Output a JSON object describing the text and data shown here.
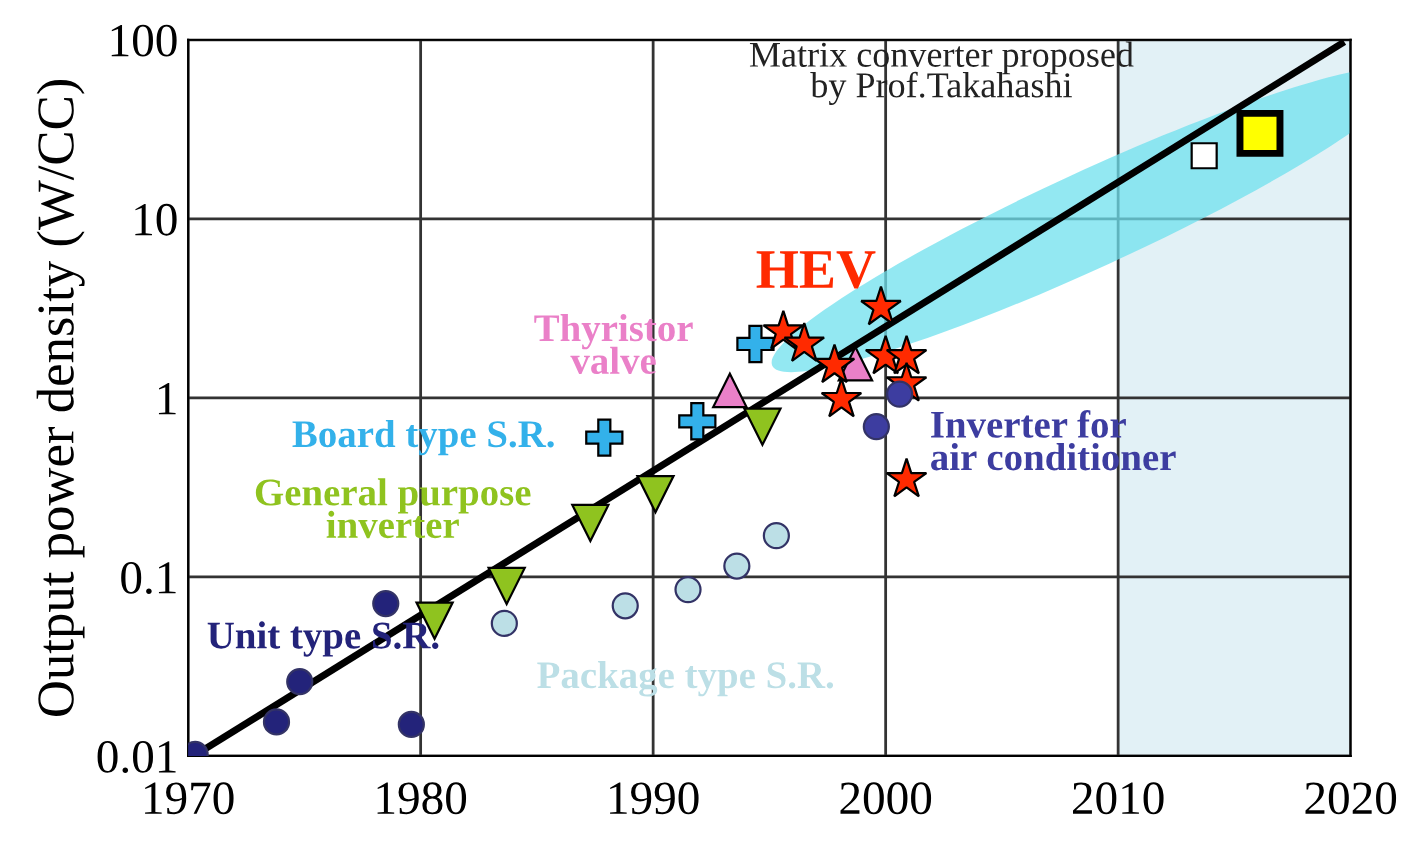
{
  "chart_data": {
    "type": "scatter",
    "ylabel": "Output power density (W/CC)",
    "xlim": [
      1970,
      2020
    ],
    "xticks": [
      1970,
      1980,
      1990,
      2000,
      2010,
      2020
    ],
    "ylim": [
      0.01,
      100
    ],
    "yticks": [
      0.01,
      0.1,
      1,
      10,
      100
    ],
    "log": "y",
    "grid": true,
    "legend": false,
    "bands": [
      {
        "axis": "x",
        "from": 2010,
        "to": 2020,
        "color": "#e2f1f6"
      }
    ],
    "series": [
      {
        "type": "line",
        "color": "#000000",
        "marker": "none",
        "x": [
          1970.5,
          2019.6
        ],
        "values": [
          0.0105,
          95
        ]
      },
      {
        "name": "Unit type S.R.",
        "color": "#23237a",
        "marker": "circle",
        "x": [
          1970.3,
          1973.8,
          1974.8,
          1978.5,
          1979.6
        ],
        "values": [
          0.0102,
          0.0155,
          0.026,
          0.071,
          0.015
        ]
      },
      {
        "name": "General purpose\ninverter",
        "color": "#8fc31f",
        "marker": "triangle_down",
        "x": [
          1980.6,
          1983.7,
          1987.3,
          1990.1,
          1994.7
        ],
        "values": [
          0.057,
          0.089,
          0.2,
          0.29,
          0.69
        ]
      },
      {
        "name": "Package type S.R.",
        "color": "#bcdfe6",
        "marker": "circle",
        "x": [
          1983.6,
          1988.8,
          1991.5,
          1993.6,
          1995.3
        ],
        "values": [
          0.055,
          0.069,
          0.085,
          0.115,
          0.17
        ]
      },
      {
        "name": "Board type S.R.",
        "color": "#33b1ea",
        "marker": "cross",
        "x": [
          1987.9,
          1991.9,
          1994.4
        ],
        "values": [
          0.6,
          0.74,
          2.0
        ]
      },
      {
        "name": "Thyristor\nvalve",
        "color": "#ea80c8",
        "marker": "triangle",
        "x": [
          1993.3,
          1998.7
        ],
        "values": [
          1.1,
          1.55
        ]
      },
      {
        "name": "HEV",
        "color": "#ff2a00",
        "marker": "star",
        "x": [
          1995.6,
          1996.5,
          1997.8,
          1999.8,
          2000.0,
          2000.9,
          2000.9,
          1998.1,
          2000.9
        ],
        "values": [
          2.34,
          2.0,
          1.52,
          3.2,
          1.7,
          1.7,
          1.2,
          0.98,
          0.35
        ]
      },
      {
        "name": "Inverter for\nair conditioner",
        "color": "#3d3da0",
        "marker": "circle",
        "x": [
          1999.6,
          2000.6
        ],
        "values": [
          0.69,
          1.05
        ]
      },
      {
        "color": "#ffffff",
        "marker": "square",
        "x": [
          2013.7
        ],
        "values": [
          22.5
        ]
      },
      {
        "name": "Matrix converter proposed\nby Prof.Takahashi",
        "color": "#ffff00",
        "marker": "square",
        "x": [
          2016.1
        ],
        "values": [
          30
        ]
      }
    ]
  }
}
